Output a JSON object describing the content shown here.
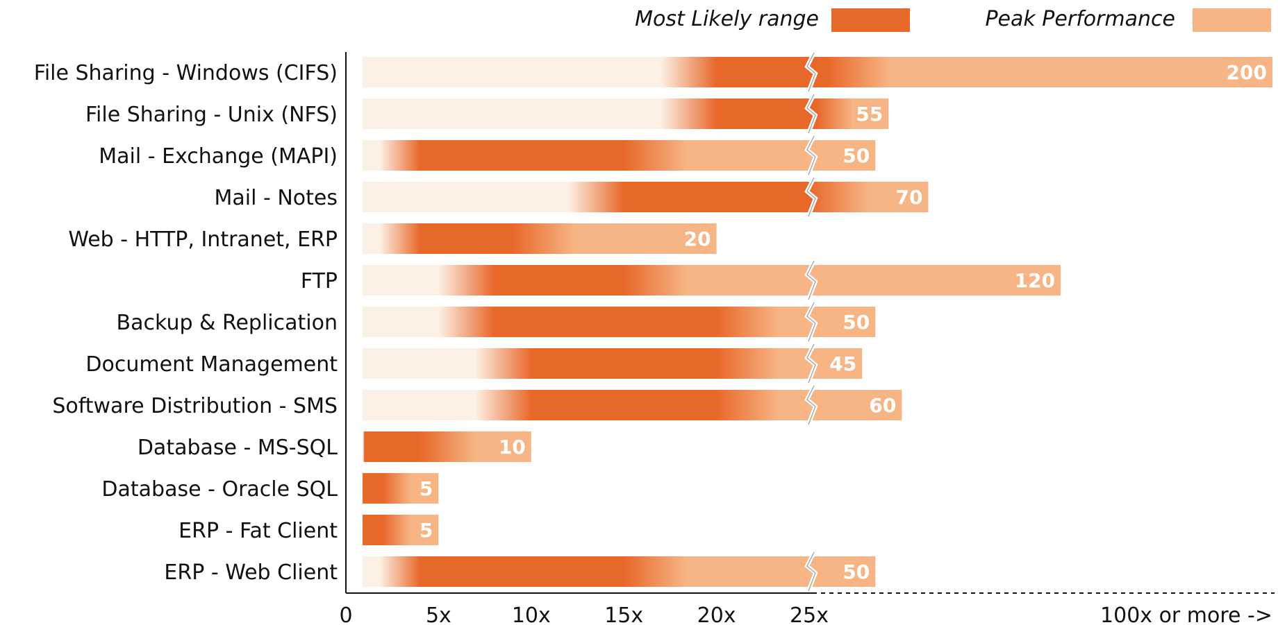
{
  "chart_data": {
    "type": "bar",
    "orientation": "horizontal",
    "title": "",
    "legend": {
      "placement": "top-right",
      "items": [
        {
          "label": "Most Likely range",
          "color": "#e8682a"
        },
        {
          "label": "Peak Performance",
          "color": "#f7b585"
        }
      ]
    },
    "x_ticks": [
      "0",
      "5x",
      "10x",
      "15x",
      "20x",
      "25x",
      "100x or more ->"
    ],
    "x_break_after": 25,
    "categories": [
      "File Sharing - Windows (CIFS)",
      "File Sharing - Unix (NFS)",
      "Mail - Exchange (MAPI)",
      "Mail - Notes",
      "Web - HTTP, Intranet, ERP",
      "FTP",
      "Backup & Replication",
      "Document Management",
      "Software Distribution - SMS",
      "Database - MS-SQL",
      "Database - Oracle SQL",
      "ERP - Fat Client",
      "ERP - Web Client"
    ],
    "peak_labels": [
      "200",
      "55",
      "50",
      "70",
      "20",
      "120",
      "50",
      "45",
      "60",
      "10",
      "5",
      "5",
      "50"
    ],
    "peak_values": [
      200,
      55,
      50,
      70,
      20,
      120,
      50,
      45,
      60,
      10,
      5,
      5,
      50
    ],
    "most_likely_range": [
      [
        20,
        32
      ],
      [
        20,
        28
      ],
      [
        4,
        15
      ],
      [
        15,
        25
      ],
      [
        4,
        9
      ],
      [
        8,
        15
      ],
      [
        8,
        20
      ],
      [
        10,
        20
      ],
      [
        10,
        20
      ],
      [
        1,
        4
      ],
      [
        0,
        2
      ],
      [
        0,
        2
      ],
      [
        4,
        15
      ]
    ],
    "colors": {
      "most_likely": "#e8682a",
      "peak": "#f7b585",
      "low": "#fdf0e5",
      "axis": "#111111"
    }
  }
}
